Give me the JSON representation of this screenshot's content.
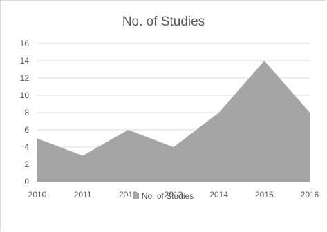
{
  "chart_data": {
    "type": "area",
    "title": "No. of Studies",
    "categories": [
      "2010",
      "2011",
      "2012",
      "2013",
      "2014",
      "2015",
      "2016"
    ],
    "series": [
      {
        "name": "No. of Studies",
        "values": [
          5,
          3,
          6,
          4,
          8,
          14,
          8
        ]
      }
    ],
    "ylim": [
      0,
      16
    ],
    "yticks": [
      "0",
      "2",
      "4",
      "6",
      "8",
      "10",
      "12",
      "14",
      "16"
    ],
    "grid": true,
    "legend_position": "bottom",
    "colors": {
      "area": "#a5a5a5",
      "grid": "#d9d9d9",
      "text": "#595959"
    }
  }
}
